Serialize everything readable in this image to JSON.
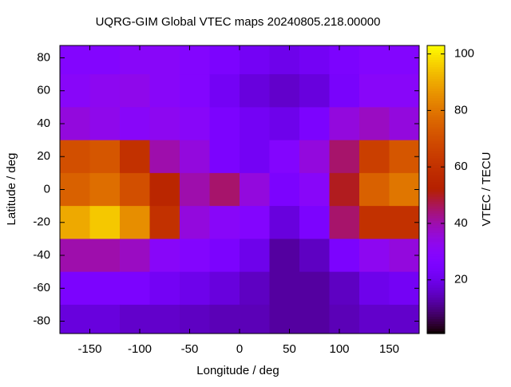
{
  "chart_data": {
    "type": "heatmap",
    "title": "UQRG-GIM Global VTEC maps 20240805.218.00000",
    "x_label": "Longitude / deg",
    "y_label": "Latitude / deg",
    "colorbar_label": "VTEC / TECU",
    "xlim": [
      -180,
      180
    ],
    "ylim": [
      -87.5,
      87.5
    ],
    "xticks": [
      -150,
      -100,
      -50,
      0,
      50,
      100,
      150
    ],
    "yticks": [
      -80,
      -60,
      -40,
      -20,
      0,
      20,
      40,
      60,
      80
    ],
    "clim": [
      1,
      103
    ],
    "cticks": [
      20,
      40,
      60,
      80,
      100
    ],
    "palette": "gnuplot-7-5-15",
    "x": [
      -165,
      -135,
      -105,
      -75,
      -45,
      -15,
      15,
      45,
      75,
      105,
      135,
      165
    ],
    "y": [
      80,
      60,
      40,
      20,
      0,
      -20,
      -40,
      -60,
      -80
    ],
    "z": [
      [
        28,
        28,
        30,
        30,
        28,
        25,
        22,
        20,
        22,
        25,
        28,
        28
      ],
      [
        30,
        32,
        33,
        30,
        28,
        22,
        18,
        16,
        18,
        24,
        30,
        30
      ],
      [
        35,
        33,
        30,
        32,
        30,
        25,
        22,
        20,
        25,
        35,
        38,
        35
      ],
      [
        70,
        72,
        60,
        40,
        35,
        25,
        22,
        28,
        35,
        45,
        65,
        72
      ],
      [
        75,
        78,
        70,
        55,
        40,
        45,
        35,
        25,
        30,
        50,
        75,
        80
      ],
      [
        90,
        95,
        85,
        60,
        35,
        30,
        28,
        18,
        25,
        45,
        60,
        60
      ],
      [
        40,
        40,
        38,
        30,
        28,
        25,
        20,
        12,
        15,
        25,
        32,
        35
      ],
      [
        25,
        25,
        25,
        22,
        20,
        18,
        15,
        12,
        12,
        15,
        20,
        22
      ],
      [
        18,
        18,
        16,
        16,
        15,
        14,
        14,
        12,
        12,
        14,
        16,
        16
      ]
    ]
  }
}
